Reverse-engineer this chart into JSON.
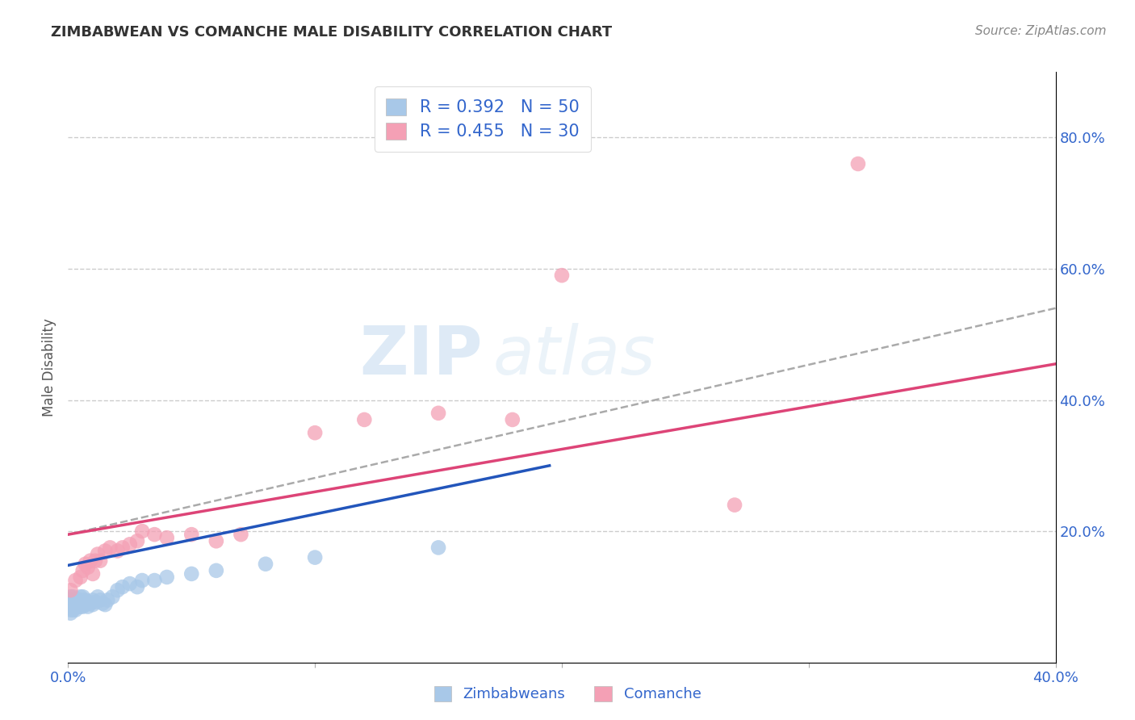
{
  "title": "ZIMBABWEAN VS COMANCHE MALE DISABILITY CORRELATION CHART",
  "source": "Source: ZipAtlas.com",
  "ylabel": "Male Disability",
  "xlim": [
    0.0,
    0.4
  ],
  "ylim": [
    0.0,
    0.9
  ],
  "x_tick_positions": [
    0.0,
    0.1,
    0.2,
    0.3,
    0.4
  ],
  "x_tick_labels": [
    "0.0%",
    "",
    "",
    "",
    "40.0%"
  ],
  "right_y_ticks": [
    0.2,
    0.4,
    0.6,
    0.8
  ],
  "right_y_tick_labels": [
    "20.0%",
    "40.0%",
    "60.0%",
    "80.0%"
  ],
  "zimbabwean_color": "#a8c8e8",
  "comanche_color": "#f4a0b5",
  "zimbabwean_line_color": "#2255bb",
  "comanche_line_color": "#dd4477",
  "regression_line_color": "#aaaaaa",
  "R_zimbabwean": 0.392,
  "N_zimbabwean": 50,
  "R_comanche": 0.455,
  "N_comanche": 30,
  "legend_label_zimbabwean": "Zimbabweans",
  "legend_label_comanche": "Comanche",
  "watermark_zip": "ZIP",
  "watermark_atlas": "atlas",
  "zimbabwean_x": [
    0.001,
    0.001,
    0.001,
    0.001,
    0.001,
    0.001,
    0.002,
    0.002,
    0.002,
    0.002,
    0.002,
    0.003,
    0.003,
    0.003,
    0.003,
    0.004,
    0.004,
    0.004,
    0.005,
    0.005,
    0.005,
    0.006,
    0.006,
    0.006,
    0.007,
    0.007,
    0.008,
    0.008,
    0.009,
    0.01,
    0.01,
    0.011,
    0.012,
    0.013,
    0.014,
    0.015,
    0.016,
    0.018,
    0.02,
    0.022,
    0.025,
    0.028,
    0.03,
    0.035,
    0.04,
    0.05,
    0.06,
    0.08,
    0.1,
    0.15
  ],
  "zimbabwean_y": [
    0.1,
    0.095,
    0.09,
    0.085,
    0.08,
    0.075,
    0.1,
    0.095,
    0.09,
    0.085,
    0.08,
    0.095,
    0.09,
    0.085,
    0.08,
    0.095,
    0.09,
    0.085,
    0.1,
    0.095,
    0.085,
    0.1,
    0.09,
    0.085,
    0.095,
    0.088,
    0.092,
    0.085,
    0.09,
    0.095,
    0.088,
    0.092,
    0.1,
    0.095,
    0.09,
    0.088,
    0.095,
    0.1,
    0.11,
    0.115,
    0.12,
    0.115,
    0.125,
    0.125,
    0.13,
    0.135,
    0.14,
    0.15,
    0.16,
    0.175
  ],
  "comanche_x": [
    0.001,
    0.003,
    0.005,
    0.006,
    0.007,
    0.008,
    0.009,
    0.01,
    0.011,
    0.012,
    0.013,
    0.015,
    0.017,
    0.02,
    0.022,
    0.025,
    0.028,
    0.03,
    0.035,
    0.04,
    0.05,
    0.06,
    0.07,
    0.1,
    0.12,
    0.15,
    0.18,
    0.2,
    0.27,
    0.32
  ],
  "comanche_y": [
    0.11,
    0.125,
    0.13,
    0.14,
    0.15,
    0.145,
    0.155,
    0.135,
    0.155,
    0.165,
    0.155,
    0.17,
    0.175,
    0.17,
    0.175,
    0.18,
    0.185,
    0.2,
    0.195,
    0.19,
    0.195,
    0.185,
    0.195,
    0.35,
    0.37,
    0.38,
    0.37,
    0.59,
    0.24,
    0.76
  ],
  "zim_line_x0": 0.0,
  "zim_line_y0": 0.148,
  "zim_line_x1": 0.195,
  "zim_line_y1": 0.3,
  "com_line_x0": 0.0,
  "com_line_y0": 0.195,
  "com_line_x1": 0.4,
  "com_line_y1": 0.455,
  "dash_line_x0": 0.0,
  "dash_line_y0": 0.195,
  "dash_line_x1": 0.4,
  "dash_line_y1": 0.54
}
